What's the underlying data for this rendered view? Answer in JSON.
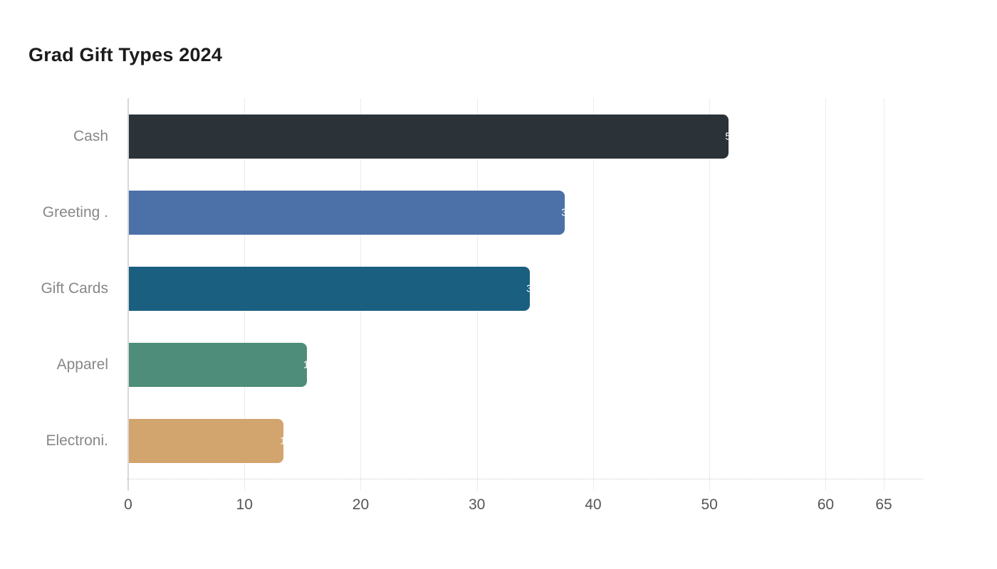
{
  "title": "Grad Gift Types 2024",
  "chart_data": {
    "type": "bar",
    "orientation": "horizontal",
    "title": "Grad Gift Types 2024",
    "categories": [
      "Cash",
      "Greeting .",
      "Gift Cards",
      "Apparel",
      "Electroni."
    ],
    "values": [
      51.6,
      37.5,
      34.5,
      15.3,
      13.3
    ],
    "value_labels": [
      "51.6",
      "37.5",
      "34.5",
      "15.3",
      "13.3"
    ],
    "bar_colors": [
      "#2b3238",
      "#4c70a8",
      "#1a5f80",
      "#4e8d79",
      "#d2a46e"
    ],
    "value_label_color": "#ffffff",
    "xlabel": "",
    "ylabel": "",
    "xlim": [
      0,
      65
    ],
    "x_ticks": [
      0,
      10,
      20,
      30,
      40,
      50,
      60,
      65
    ],
    "grid": true,
    "legend": false
  },
  "colors": {
    "background": "#ffffff",
    "title_text": "#1c1c1c",
    "gridline": "#ececec",
    "axis_line": "#d8d8d8",
    "dotted_baseline": "#c9c9c9",
    "tick_label": "#555555",
    "category_label": "#878787"
  }
}
